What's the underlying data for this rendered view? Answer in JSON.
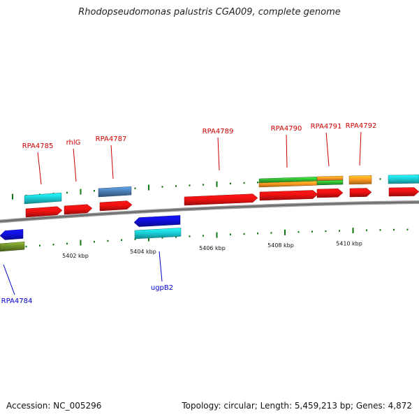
{
  "title": "Rhodopseudomonas palustris CGA009, complete genome",
  "footer": {
    "accession": "Accession: NC_005296",
    "summary": "Topology: circular; Length: 5,459,213 bp; Genes: 4,872"
  },
  "colors": {
    "red": "#ee1111",
    "cyan": "#1ccfd8",
    "steelblue": "#4a7eb5",
    "blue": "#1010dd",
    "olive": "#6e8f2a",
    "green": "#33bb33",
    "orange": "#ff9922",
    "backbone": "#888888",
    "tick": "#117711"
  },
  "scale_labels": [
    "5402 kbp",
    "5404 kbp",
    "5406 kbp",
    "5408 kbp",
    "5410 kbp"
  ],
  "gene_labels": {
    "top": [
      "RPA4785",
      "rhlG",
      "RPA4787",
      "RPA4789",
      "RPA4790",
      "RPA4791",
      "RPA4792"
    ],
    "bottom": [
      "RPA4784",
      "ugpB2"
    ]
  }
}
